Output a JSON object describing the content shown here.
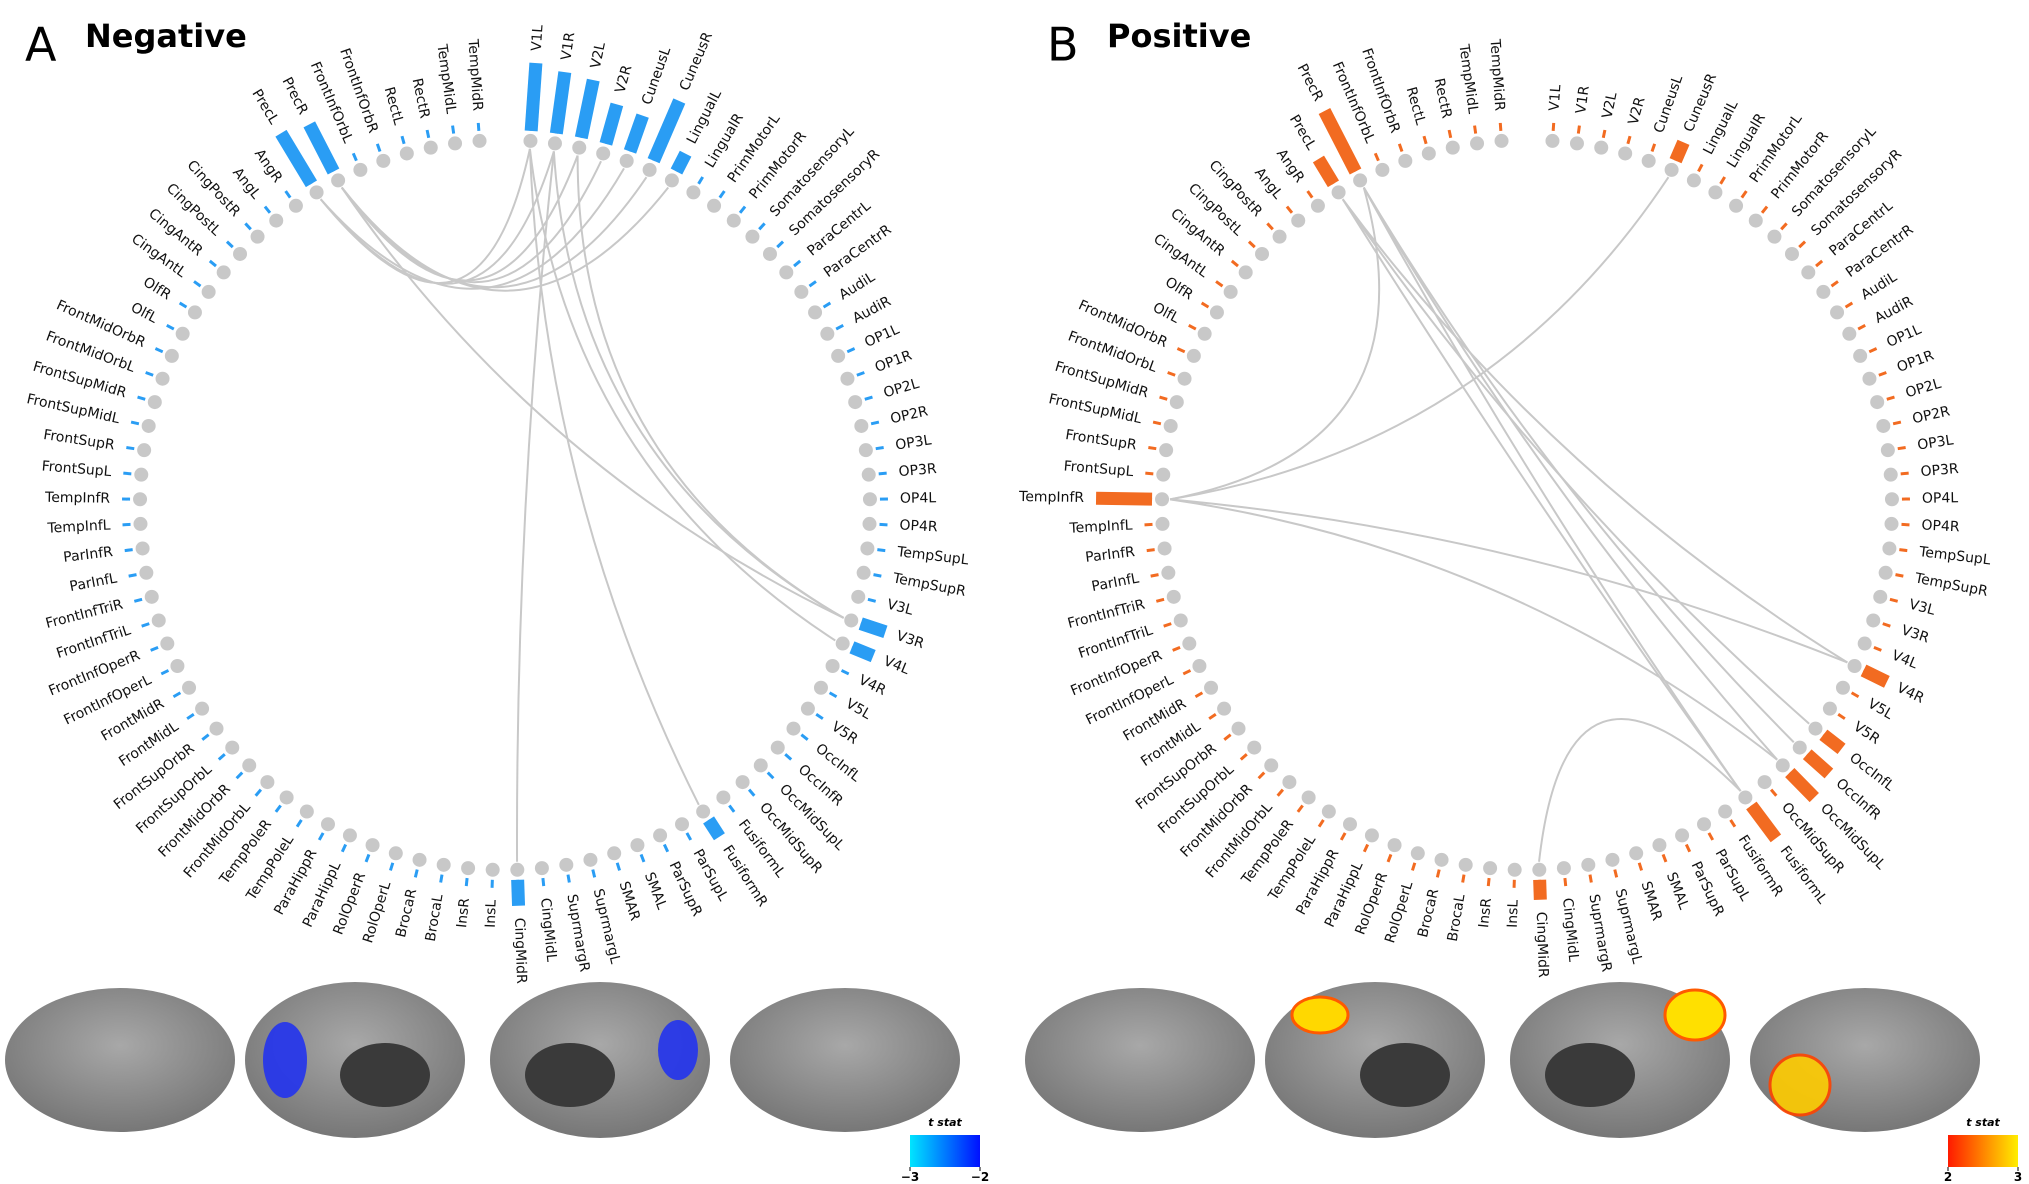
{
  "nodes": [
    "V1L",
    "V1R",
    "V2L",
    "V2R",
    "CuneusL",
    "CuneusR",
    "LingualL",
    "LingualR",
    "PrimMotorL",
    "PrimMotorR",
    "SomatosensoryL",
    "SomatosensoryR",
    "ParaCentrL",
    "ParaCentrR",
    "AudiL",
    "AudiR",
    "OP1L",
    "OP1R",
    "OP2L",
    "OP2R",
    "OP3L",
    "OP3R",
    "OP4L",
    "OP4R",
    "TempSupL",
    "TempSupR",
    "V3L",
    "V3R",
    "V4L",
    "V4R",
    "V5L",
    "V5R",
    "OccInfL",
    "OccInfR",
    "OccMidSupL",
    "OccMidSupR",
    "FusiformL",
    "FusiformR",
    "ParSupL",
    "ParSupR",
    "SMAL",
    "SMAR",
    "SuprmargL",
    "SuprmargR",
    "CingMidL",
    "CingMidR",
    "InsL",
    "InsR",
    "BrocaL",
    "BrocaR",
    "RolOperL",
    "RolOperR",
    "ParaHippL",
    "ParaHippR",
    "TempPoleL",
    "TempPoleR",
    "FrontMidOrbL",
    "FrontMidOrbR",
    "FrontSupOrbL",
    "FrontSupOrbR",
    "FrontMidL",
    "FrontMidR",
    "FrontInfOperL",
    "FrontInfOperR",
    "FrontInfTriL",
    "FrontInfTriR",
    "ParInfL",
    "ParInfR",
    "TempInfL",
    "TempInfR",
    "FrontSupL",
    "FrontSupR",
    "FrontSupMidL",
    "FrontSupMidR",
    "FrontMidOrbL",
    "FrontMidOrbR",
    "OlfL",
    "OlfR",
    "CingAntL",
    "CingAntR",
    "CingPostL",
    "CingPostR",
    "AngL",
    "AngR",
    "PrecL",
    "PrecR",
    "FrontInfOrbL",
    "FrontInfOrbR",
    "RectL",
    "RectR",
    "TempMidL",
    "TempMidR"
  ],
  "panels": [
    {
      "letter": "A",
      "title": "Negative",
      "color": "#2a9df4",
      "bars": [
        {
          "node": 0,
          "length": 1.0
        },
        {
          "node": 1,
          "length": 0.9
        },
        {
          "node": 2,
          "length": 0.85
        },
        {
          "node": 3,
          "length": 0.55
        },
        {
          "node": 4,
          "length": 0.5
        },
        {
          "node": 5,
          "length": 0.95
        },
        {
          "node": 6,
          "length": 0.2
        },
        {
          "node": 27,
          "length": 0.3
        },
        {
          "node": 28,
          "length": 0.25
        },
        {
          "node": 37,
          "length": 0.2
        },
        {
          "node": 45,
          "length": 0.3
        },
        {
          "node": 84,
          "length": 0.85
        },
        {
          "node": 85,
          "length": 0.75
        }
      ],
      "edges": [
        [
          0,
          84
        ],
        [
          1,
          84
        ],
        [
          2,
          85
        ],
        [
          3,
          85
        ],
        [
          4,
          84
        ],
        [
          5,
          85
        ],
        [
          6,
          85
        ],
        [
          27,
          1
        ],
        [
          27,
          2
        ],
        [
          28,
          0
        ],
        [
          37,
          0
        ],
        [
          45,
          1
        ],
        [
          85,
          27
        ]
      ],
      "colorbar": {
        "label": "t stat",
        "colors": [
          "#00e5ff",
          "#0010ff"
        ],
        "ticks": [
          {
            "value": -3,
            "label": "−3"
          },
          {
            "value": -2,
            "label": "−2"
          }
        ]
      }
    },
    {
      "letter": "B",
      "title": "Positive",
      "color": "#f26b21",
      "bars": [
        {
          "node": 84,
          "length": 0.35
        },
        {
          "node": 85,
          "length": 1.0
        },
        {
          "node": 5,
          "length": 0.2
        },
        {
          "node": 69,
          "length": 0.8
        },
        {
          "node": 29,
          "length": 0.3
        },
        {
          "node": 32,
          "length": 0.25
        },
        {
          "node": 33,
          "length": 0.35
        },
        {
          "node": 34,
          "length": 0.45
        },
        {
          "node": 36,
          "length": 0.55
        },
        {
          "node": 45,
          "length": 0.2
        }
      ],
      "edges": [
        [
          84,
          29
        ],
        [
          84,
          32
        ],
        [
          85,
          33
        ],
        [
          85,
          34
        ],
        [
          85,
          36
        ],
        [
          84,
          36
        ],
        [
          69,
          5
        ],
        [
          69,
          29
        ],
        [
          69,
          34
        ],
        [
          45,
          36
        ],
        [
          85,
          69
        ]
      ],
      "colorbar": {
        "label": "t stat",
        "colors": [
          "#ff1a00",
          "#ffee00"
        ],
        "ticks": [
          2,
          3
        ]
      }
    }
  ]
}
